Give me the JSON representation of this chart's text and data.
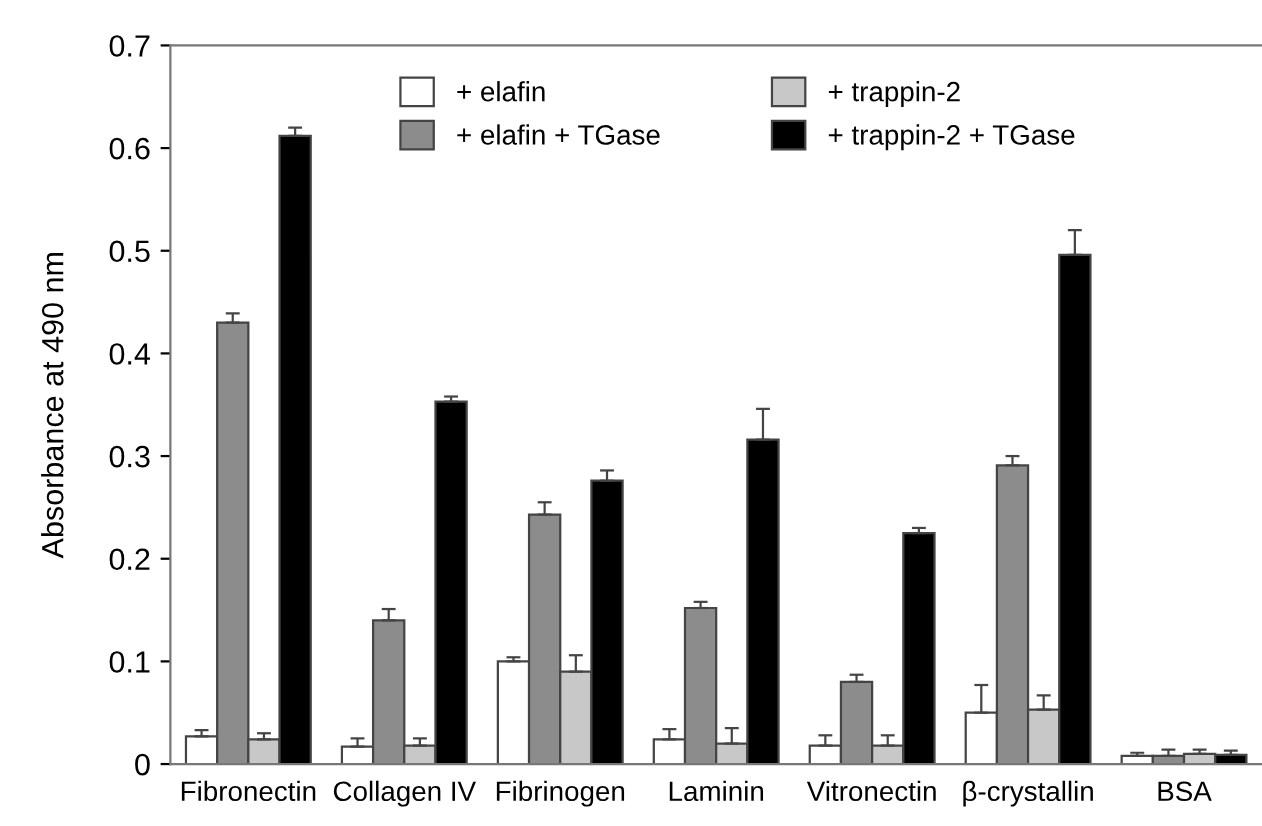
{
  "chart_data": {
    "type": "bar",
    "ylabel": "Absorbance at 490 nm",
    "categories": [
      "Fibronectin",
      "Collagen IV",
      "Fibrinogen",
      "Laminin",
      "Vitronectin",
      "β-crystallin",
      "BSA"
    ],
    "series": [
      {
        "name": "+ elafin",
        "color": "#ffffff",
        "values": [
          0.027,
          0.017,
          0.1,
          0.024,
          0.018,
          0.05,
          0.008
        ],
        "errors": [
          [
            0.027,
            0.033
          ],
          [
            0.017,
            0.025
          ],
          [
            0.1,
            0.104
          ],
          [
            0.024,
            0.034
          ],
          [
            0.018,
            0.028
          ],
          [
            0.05,
            0.077
          ],
          [
            0.008,
            0.011
          ]
        ]
      },
      {
        "name": "+ elafin + TGase",
        "color": "#8c8c8c",
        "values": [
          0.43,
          0.14,
          0.243,
          0.152,
          0.08,
          0.291,
          0.008
        ],
        "errors": [
          [
            0.43,
            0.439
          ],
          [
            0.14,
            0.151
          ],
          [
            0.243,
            0.255
          ],
          [
            0.152,
            0.158
          ],
          [
            0.08,
            0.087
          ],
          [
            0.291,
            0.3
          ],
          [
            0.008,
            0.014
          ]
        ]
      },
      {
        "name": "+ trappin-2",
        "color": "#c8c8c8",
        "values": [
          0.024,
          0.018,
          0.09,
          0.02,
          0.018,
          0.053,
          0.01
        ],
        "errors": [
          [
            0.024,
            0.03
          ],
          [
            0.018,
            0.025
          ],
          [
            0.09,
            0.106
          ],
          [
            0.02,
            0.035
          ],
          [
            0.018,
            0.028
          ],
          [
            0.053,
            0.067
          ],
          [
            0.01,
            0.014
          ]
        ]
      },
      {
        "name": "+ trappin-2 + TGase",
        "color": "#000000",
        "values": [
          0.612,
          0.353,
          0.276,
          0.316,
          0.225,
          0.496,
          0.009
        ],
        "errors": [
          [
            0.612,
            0.62
          ],
          [
            0.353,
            0.358
          ],
          [
            0.276,
            0.286
          ],
          [
            0.316,
            0.346
          ],
          [
            0.225,
            0.23
          ],
          [
            0.496,
            0.52
          ],
          [
            0.009,
            0.013
          ]
        ]
      }
    ],
    "ylim": [
      0,
      0.7
    ],
    "yticks": [
      0,
      0.1,
      0.2,
      0.3,
      0.4,
      0.5,
      0.6,
      0.7
    ],
    "grid": false,
    "legend": "top"
  }
}
